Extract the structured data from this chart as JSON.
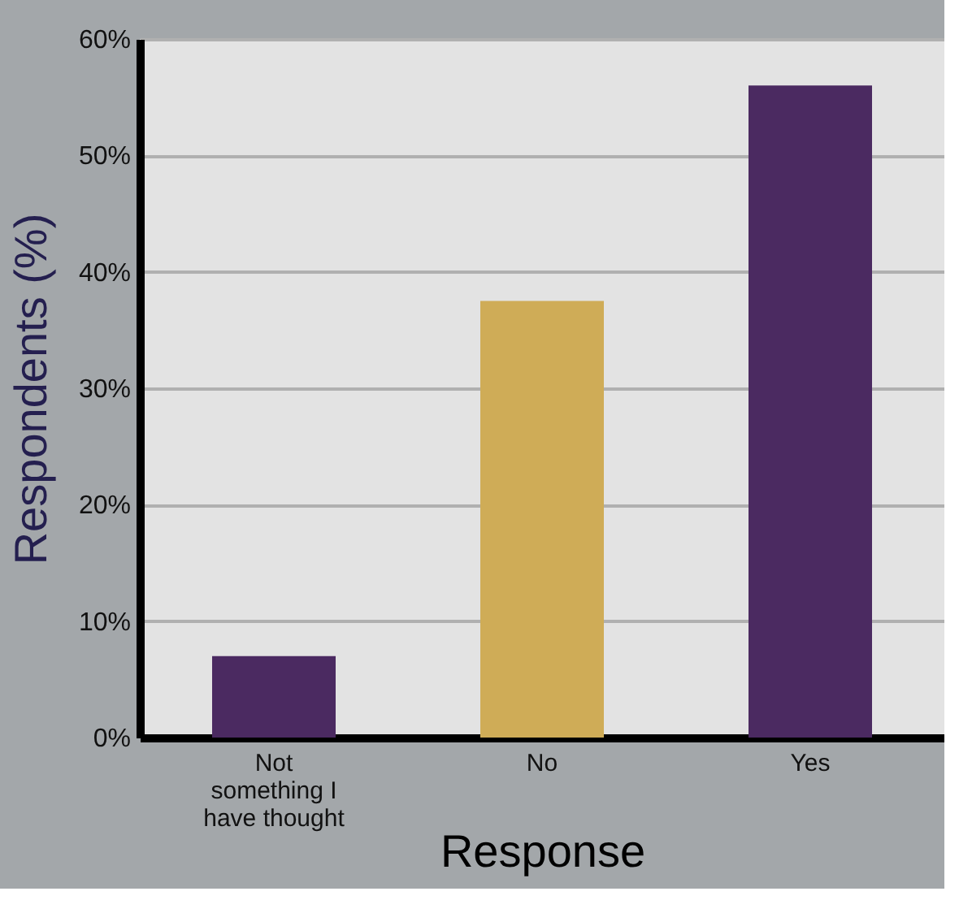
{
  "chart_data": {
    "type": "bar",
    "xlabel": "Response",
    "ylabel": "Respondents (%)",
    "categories": [
      "Not something I have thought",
      "No",
      "Yes"
    ],
    "values": [
      7,
      37.5,
      56
    ],
    "colors": [
      "#4b2a61",
      "#cfac57",
      "#4b2a61"
    ],
    "ylim": [
      0,
      60
    ],
    "yticks": [
      {
        "value": 0,
        "label": "0%"
      },
      {
        "value": 10,
        "label": "10%"
      },
      {
        "value": 20,
        "label": "20%"
      },
      {
        "value": 30,
        "label": "30%"
      },
      {
        "value": 40,
        "label": "40%"
      },
      {
        "value": 50,
        "label": "50%"
      },
      {
        "value": 60,
        "label": "60%"
      }
    ],
    "grid": "y",
    "legend": false
  }
}
